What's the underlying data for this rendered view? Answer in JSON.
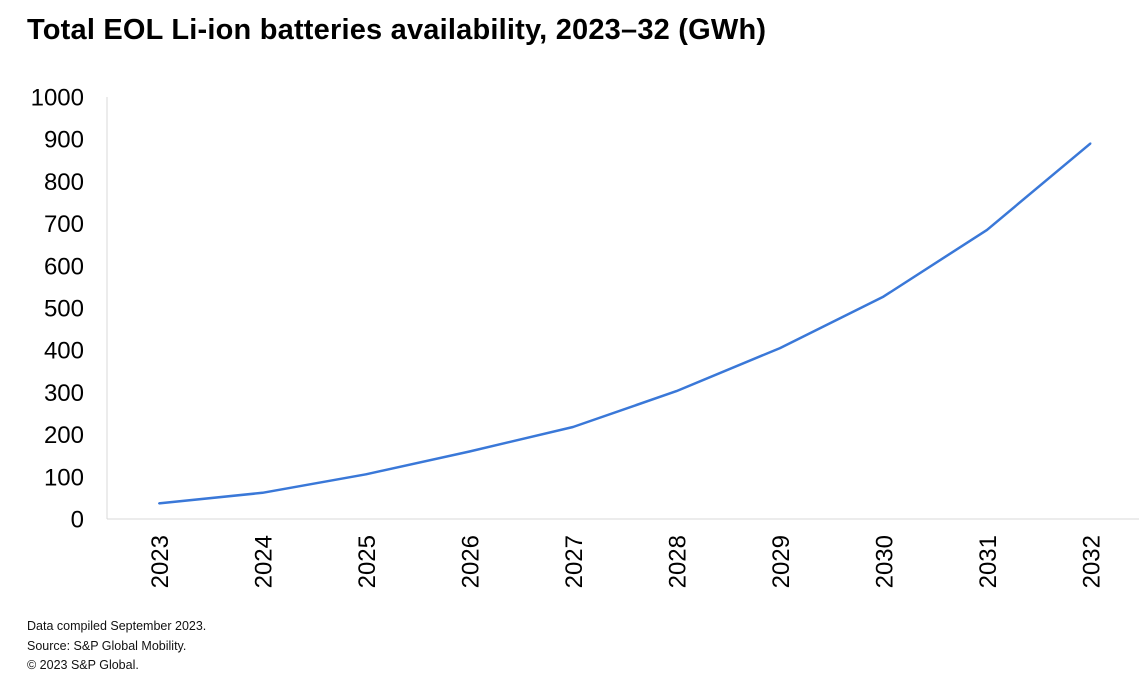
{
  "chart_data": {
    "type": "line",
    "title": "Total EOL Li-ion batteries availability, 2023–32 (GWh)",
    "xlabel": "",
    "ylabel": "",
    "categories": [
      "2023",
      "2024",
      "2025",
      "2026",
      "2027",
      "2028",
      "2029",
      "2030",
      "2031",
      "2032"
    ],
    "series": [
      {
        "name": "Total EOL Li-ion batteries availability (GWh)",
        "values": [
          37,
          62,
          106,
          160,
          218,
          303,
          405,
          527,
          685,
          890
        ]
      }
    ],
    "ylim": [
      0,
      1000
    ],
    "yticks": [
      "0",
      "100",
      "200",
      "300",
      "400",
      "500",
      "600",
      "700",
      "800",
      "900",
      "1000"
    ],
    "grid": false,
    "legend": "none",
    "line_color": "#3a78d8"
  },
  "footnotes": {
    "line1": "Data compiled September 2023.",
    "line2": "Source: S&P Global Mobility.",
    "line3": "© 2023 S&P Global."
  }
}
